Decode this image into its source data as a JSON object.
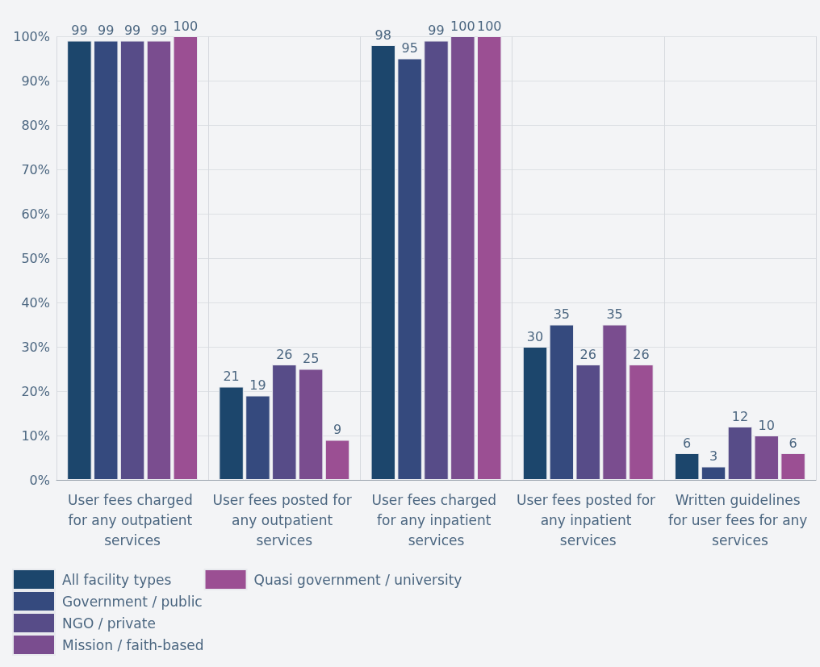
{
  "chart_data": {
    "type": "bar",
    "categories": [
      "User fees charged for any outpatient services",
      "User fees posted for any outpatient services",
      "User fees charged for any inpatient services",
      "User fees posted for any inpatient services",
      "Written guidelines for user fees for any services"
    ],
    "series": [
      {
        "name": "All facility types",
        "color": "#1c466c",
        "values": [
          99,
          21,
          98,
          30,
          6
        ]
      },
      {
        "name": "Government / public",
        "color": "#354a7e",
        "values": [
          99,
          19,
          95,
          35,
          3
        ]
      },
      {
        "name": "NGO / private",
        "color": "#574c88",
        "values": [
          99,
          26,
          99,
          26,
          12
        ]
      },
      {
        "name": "Mission / faith-based",
        "color": "#7a4d8f",
        "values": [
          99,
          25,
          100,
          35,
          10
        ]
      },
      {
        "name": "Quasi government / university",
        "color": "#9b4f93",
        "values": [
          100,
          9,
          100,
          26,
          6
        ]
      }
    ],
    "ylim": [
      0,
      100
    ],
    "yticks": [
      {
        "value": 0,
        "label": "0%"
      },
      {
        "value": 10,
        "label": "10%"
      },
      {
        "value": 20,
        "label": "20%"
      },
      {
        "value": 30,
        "label": "30%"
      },
      {
        "value": 40,
        "label": "40%"
      },
      {
        "value": 50,
        "label": "50%"
      },
      {
        "value": 60,
        "label": "60%"
      },
      {
        "value": 70,
        "label": "70%"
      },
      {
        "value": 80,
        "label": "80%"
      },
      {
        "value": 90,
        "label": "90%"
      },
      {
        "value": 100,
        "label": "100%"
      }
    ],
    "data_labels": true,
    "grid": true,
    "legend": "bottom left"
  }
}
